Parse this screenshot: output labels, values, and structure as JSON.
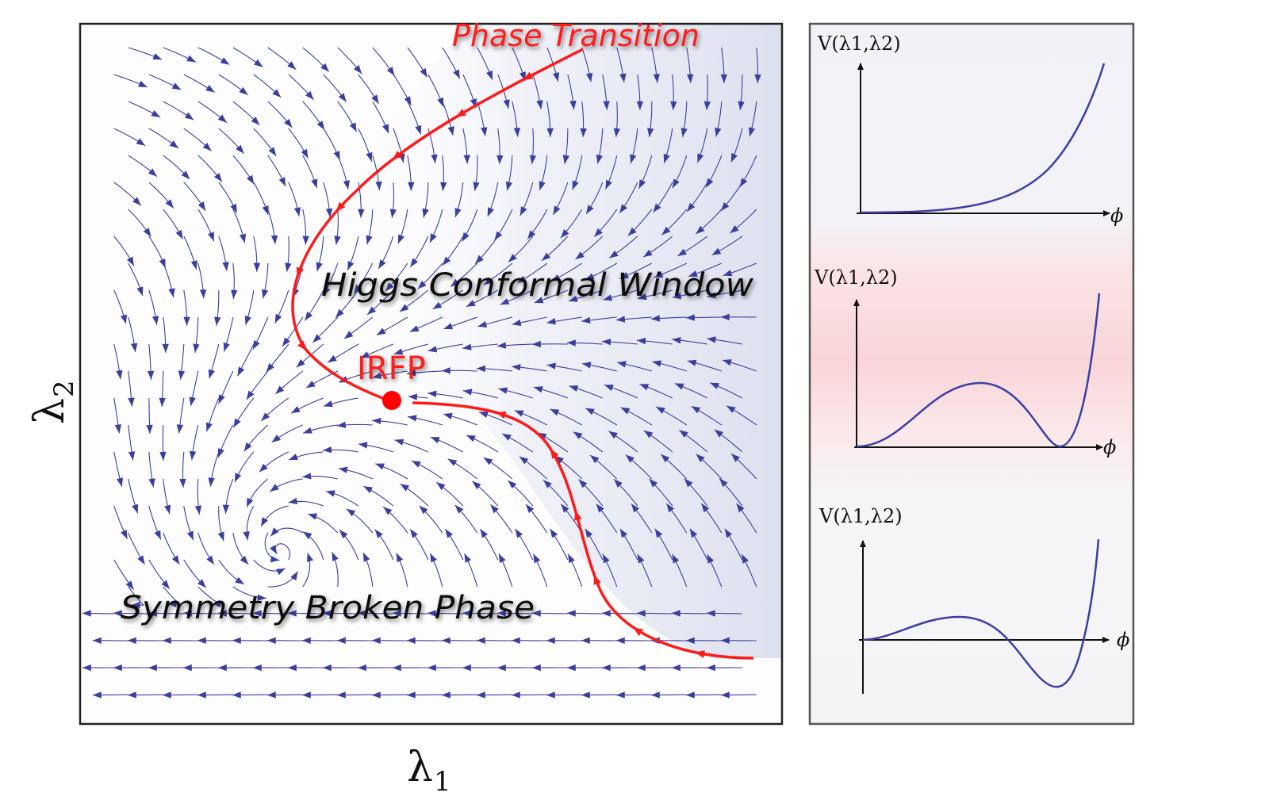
{
  "flow_panel": {
    "phase_transition_label": "Phase Transition",
    "conformal_window_label": "Higgs Conformal Window",
    "fixed_point_label": "IRFP",
    "broken_phase_label": "Symmetry Broken Phase",
    "x_axis_symbol": "λ",
    "x_axis_subscript": "1",
    "y_axis_symbol": "λ",
    "y_axis_subscript": "2"
  },
  "potential_panels": [
    {
      "label": "V(λ1,λ2)",
      "axis_label": "ϕ",
      "shape": "monotonic"
    },
    {
      "label": "V(λ1,λ2)",
      "axis_label": "ϕ",
      "shape": "degenerate-minima"
    },
    {
      "label": "V(λ1,λ2)",
      "axis_label": "ϕ",
      "shape": "true-vacuum-below-origin"
    }
  ],
  "colors": {
    "flow_arrows": "#3a3f9e",
    "critical_line": "#ff1a1a",
    "fixed_point": "#ff0000",
    "potential_curve": "#3b3fa3",
    "frame": "#222222",
    "window_tint": "#e3e6f2",
    "transition_tint": "#f9d6d8"
  }
}
